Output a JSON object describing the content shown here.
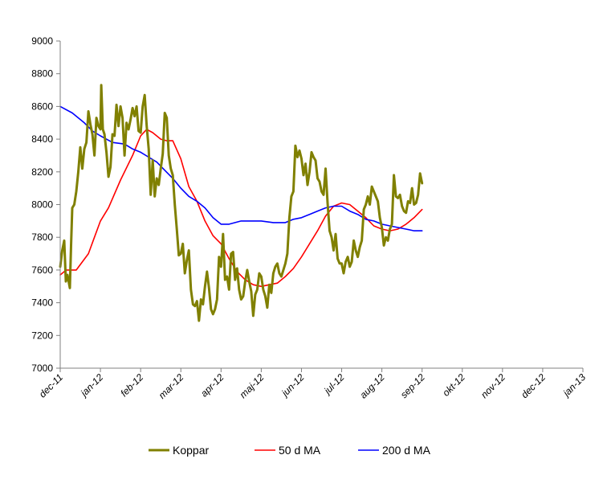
{
  "chart_data": {
    "type": "line",
    "title": "",
    "xlabel": "",
    "ylabel": "",
    "ylim": [
      7000,
      9000
    ],
    "yticks": [
      7000,
      7200,
      7400,
      7600,
      7800,
      8000,
      8200,
      8400,
      8600,
      8800,
      9000
    ],
    "xticks": [
      "dec-11",
      "jan-12",
      "feb-12",
      "mar-12",
      "apr-12",
      "maj-12",
      "jun-12",
      "jul-12",
      "aug-12",
      "sep-12",
      "okt-12",
      "nov-12",
      "dec-12",
      "jan-13"
    ],
    "grid": false,
    "legend": "bottom",
    "series": [
      {
        "name": "Koppar",
        "color": "#808000",
        "values": [
          [
            0,
            7620
          ],
          [
            0.05,
            7720
          ],
          [
            0.1,
            7780
          ],
          [
            0.14,
            7530
          ],
          [
            0.18,
            7570
          ],
          [
            0.24,
            7490
          ],
          [
            0.27,
            7750
          ],
          [
            0.3,
            7980
          ],
          [
            0.35,
            8000
          ],
          [
            0.4,
            8080
          ],
          [
            0.45,
            8200
          ],
          [
            0.5,
            8350
          ],
          [
            0.55,
            8220
          ],
          [
            0.6,
            8340
          ],
          [
            0.65,
            8380
          ],
          [
            0.7,
            8570
          ],
          [
            0.75,
            8490
          ],
          [
            0.8,
            8430
          ],
          [
            0.85,
            8300
          ],
          [
            0.9,
            8530
          ],
          [
            0.95,
            8480
          ],
          [
            1.0,
            8460
          ],
          [
            1.02,
            8730
          ],
          [
            1.06,
            8460
          ],
          [
            1.1,
            8430
          ],
          [
            1.15,
            8320
          ],
          [
            1.2,
            8170
          ],
          [
            1.25,
            8230
          ],
          [
            1.3,
            8430
          ],
          [
            1.35,
            8420
          ],
          [
            1.4,
            8610
          ],
          [
            1.45,
            8480
          ],
          [
            1.5,
            8600
          ],
          [
            1.55,
            8530
          ],
          [
            1.6,
            8300
          ],
          [
            1.65,
            8500
          ],
          [
            1.7,
            8460
          ],
          [
            1.75,
            8520
          ],
          [
            1.8,
            8590
          ],
          [
            1.85,
            8540
          ],
          [
            1.9,
            8600
          ],
          [
            1.95,
            8450
          ],
          [
            2.0,
            8440
          ],
          [
            2.05,
            8600
          ],
          [
            2.1,
            8670
          ],
          [
            2.15,
            8480
          ],
          [
            2.2,
            8340
          ],
          [
            2.25,
            8060
          ],
          [
            2.3,
            8270
          ],
          [
            2.35,
            8050
          ],
          [
            2.4,
            8160
          ],
          [
            2.45,
            8120
          ],
          [
            2.5,
            8220
          ],
          [
            2.55,
            8310
          ],
          [
            2.6,
            8560
          ],
          [
            2.65,
            8530
          ],
          [
            2.7,
            8300
          ],
          [
            2.75,
            8220
          ],
          [
            2.8,
            8180
          ],
          [
            2.85,
            8000
          ],
          [
            2.9,
            7850
          ],
          [
            2.95,
            7690
          ],
          [
            3.0,
            7700
          ],
          [
            3.05,
            7760
          ],
          [
            3.1,
            7580
          ],
          [
            3.15,
            7660
          ],
          [
            3.2,
            7720
          ],
          [
            3.25,
            7480
          ],
          [
            3.3,
            7390
          ],
          [
            3.35,
            7380
          ],
          [
            3.4,
            7410
          ],
          [
            3.45,
            7290
          ],
          [
            3.5,
            7420
          ],
          [
            3.55,
            7390
          ],
          [
            3.6,
            7500
          ],
          [
            3.65,
            7590
          ],
          [
            3.7,
            7490
          ],
          [
            3.75,
            7360
          ],
          [
            3.8,
            7330
          ],
          [
            3.85,
            7360
          ],
          [
            3.9,
            7420
          ],
          [
            3.95,
            7680
          ],
          [
            4.0,
            7620
          ],
          [
            4.05,
            7820
          ],
          [
            4.1,
            7540
          ],
          [
            4.15,
            7560
          ],
          [
            4.2,
            7480
          ],
          [
            4.25,
            7700
          ],
          [
            4.3,
            7710
          ],
          [
            4.35,
            7540
          ],
          [
            4.4,
            7610
          ],
          [
            4.45,
            7480
          ],
          [
            4.5,
            7420
          ],
          [
            4.55,
            7440
          ],
          [
            4.6,
            7530
          ],
          [
            4.65,
            7600
          ],
          [
            4.7,
            7530
          ],
          [
            4.75,
            7470
          ],
          [
            4.8,
            7320
          ],
          [
            4.85,
            7450
          ],
          [
            4.9,
            7480
          ],
          [
            4.95,
            7580
          ],
          [
            5.0,
            7560
          ],
          [
            5.05,
            7480
          ],
          [
            5.1,
            7440
          ],
          [
            5.15,
            7370
          ],
          [
            5.2,
            7510
          ],
          [
            5.25,
            7460
          ],
          [
            5.3,
            7580
          ],
          [
            5.35,
            7620
          ],
          [
            5.4,
            7640
          ],
          [
            5.45,
            7580
          ],
          [
            5.5,
            7560
          ],
          [
            5.55,
            7600
          ],
          [
            5.6,
            7640
          ],
          [
            5.65,
            7700
          ],
          [
            5.7,
            7920
          ],
          [
            5.75,
            8050
          ],
          [
            5.8,
            8080
          ],
          [
            5.85,
            8360
          ],
          [
            5.9,
            8290
          ],
          [
            5.95,
            8330
          ],
          [
            6.0,
            8280
          ],
          [
            6.05,
            8180
          ],
          [
            6.1,
            8250
          ],
          [
            6.15,
            8120
          ],
          [
            6.2,
            8200
          ],
          [
            6.25,
            8320
          ],
          [
            6.3,
            8290
          ],
          [
            6.35,
            8270
          ],
          [
            6.4,
            8160
          ],
          [
            6.45,
            8140
          ],
          [
            6.5,
            8080
          ],
          [
            6.55,
            8060
          ],
          [
            6.6,
            8220
          ],
          [
            6.65,
            8010
          ],
          [
            6.7,
            7840
          ],
          [
            6.75,
            7800
          ],
          [
            6.8,
            7720
          ],
          [
            6.85,
            7820
          ],
          [
            6.9,
            7670
          ],
          [
            6.95,
            7640
          ],
          [
            7.0,
            7640
          ],
          [
            7.05,
            7580
          ],
          [
            7.1,
            7650
          ],
          [
            7.15,
            7680
          ],
          [
            7.2,
            7620
          ],
          [
            7.25,
            7650
          ],
          [
            7.3,
            7780
          ],
          [
            7.35,
            7720
          ],
          [
            7.4,
            7680
          ],
          [
            7.45,
            7740
          ],
          [
            7.5,
            7780
          ],
          [
            7.55,
            7970
          ],
          [
            7.6,
            8000
          ],
          [
            7.65,
            8050
          ],
          [
            7.7,
            8000
          ],
          [
            7.75,
            8110
          ],
          [
            7.8,
            8080
          ],
          [
            7.85,
            8050
          ],
          [
            7.9,
            8020
          ],
          [
            7.95,
            7920
          ],
          [
            8.0,
            7860
          ],
          [
            8.05,
            7750
          ],
          [
            8.1,
            7800
          ],
          [
            8.15,
            7780
          ],
          [
            8.2,
            7850
          ],
          [
            8.25,
            7880
          ],
          [
            8.3,
            8180
          ],
          [
            8.35,
            8050
          ],
          [
            8.4,
            8040
          ],
          [
            8.45,
            8060
          ],
          [
            8.5,
            7990
          ],
          [
            8.55,
            7960
          ],
          [
            8.6,
            7950
          ],
          [
            8.65,
            8020
          ],
          [
            8.7,
            8010
          ],
          [
            8.75,
            8100
          ],
          [
            8.8,
            8000
          ],
          [
            8.85,
            8010
          ],
          [
            8.9,
            8060
          ],
          [
            8.95,
            8190
          ],
          [
            9.0,
            8130
          ]
        ]
      },
      {
        "name": "50 d MA",
        "color": "#ff0000",
        "values": [
          [
            0,
            7570
          ],
          [
            0.15,
            7600
          ],
          [
            0.4,
            7600
          ],
          [
            0.7,
            7700
          ],
          [
            0.85,
            7800
          ],
          [
            1.0,
            7900
          ],
          [
            1.2,
            7980
          ],
          [
            1.5,
            8150
          ],
          [
            1.8,
            8300
          ],
          [
            2.0,
            8420
          ],
          [
            2.15,
            8460
          ],
          [
            2.3,
            8440
          ],
          [
            2.5,
            8400
          ],
          [
            2.65,
            8390
          ],
          [
            2.8,
            8390
          ],
          [
            3.0,
            8280
          ],
          [
            3.2,
            8110
          ],
          [
            3.4,
            8020
          ],
          [
            3.6,
            7900
          ],
          [
            3.8,
            7810
          ],
          [
            4.0,
            7760
          ],
          [
            4.2,
            7670
          ],
          [
            4.4,
            7590
          ],
          [
            4.6,
            7540
          ],
          [
            4.8,
            7510
          ],
          [
            5.0,
            7500
          ],
          [
            5.2,
            7510
          ],
          [
            5.4,
            7520
          ],
          [
            5.6,
            7560
          ],
          [
            5.8,
            7610
          ],
          [
            6.0,
            7680
          ],
          [
            6.2,
            7760
          ],
          [
            6.4,
            7840
          ],
          [
            6.6,
            7930
          ],
          [
            6.8,
            7990
          ],
          [
            7.0,
            8010
          ],
          [
            7.2,
            8000
          ],
          [
            7.4,
            7960
          ],
          [
            7.6,
            7920
          ],
          [
            7.8,
            7870
          ],
          [
            8.0,
            7850
          ],
          [
            8.2,
            7840
          ],
          [
            8.4,
            7850
          ],
          [
            8.6,
            7880
          ],
          [
            8.8,
            7920
          ],
          [
            9.0,
            7970
          ]
        ]
      },
      {
        "name": "200 d MA",
        "color": "#0000ff",
        "values": [
          [
            0,
            8600
          ],
          [
            0.3,
            8560
          ],
          [
            0.6,
            8500
          ],
          [
            0.8,
            8450
          ],
          [
            1.0,
            8420
          ],
          [
            1.3,
            8380
          ],
          [
            1.6,
            8370
          ],
          [
            1.8,
            8340
          ],
          [
            2.0,
            8320
          ],
          [
            2.2,
            8290
          ],
          [
            2.4,
            8260
          ],
          [
            2.6,
            8210
          ],
          [
            2.8,
            8160
          ],
          [
            3.0,
            8100
          ],
          [
            3.2,
            8050
          ],
          [
            3.4,
            8020
          ],
          [
            3.6,
            7980
          ],
          [
            3.8,
            7920
          ],
          [
            4.0,
            7880
          ],
          [
            4.2,
            7880
          ],
          [
            4.5,
            7900
          ],
          [
            4.8,
            7900
          ],
          [
            5.0,
            7900
          ],
          [
            5.3,
            7890
          ],
          [
            5.6,
            7890
          ],
          [
            5.8,
            7910
          ],
          [
            6.0,
            7920
          ],
          [
            6.2,
            7940
          ],
          [
            6.4,
            7960
          ],
          [
            6.6,
            7980
          ],
          [
            6.8,
            7990
          ],
          [
            7.0,
            7990
          ],
          [
            7.2,
            7960
          ],
          [
            7.4,
            7940
          ],
          [
            7.6,
            7910
          ],
          [
            7.8,
            7900
          ],
          [
            8.0,
            7880
          ],
          [
            8.2,
            7870
          ],
          [
            8.4,
            7860
          ],
          [
            8.6,
            7850
          ],
          [
            8.8,
            7840
          ],
          [
            9.0,
            7840
          ]
        ]
      }
    ]
  }
}
